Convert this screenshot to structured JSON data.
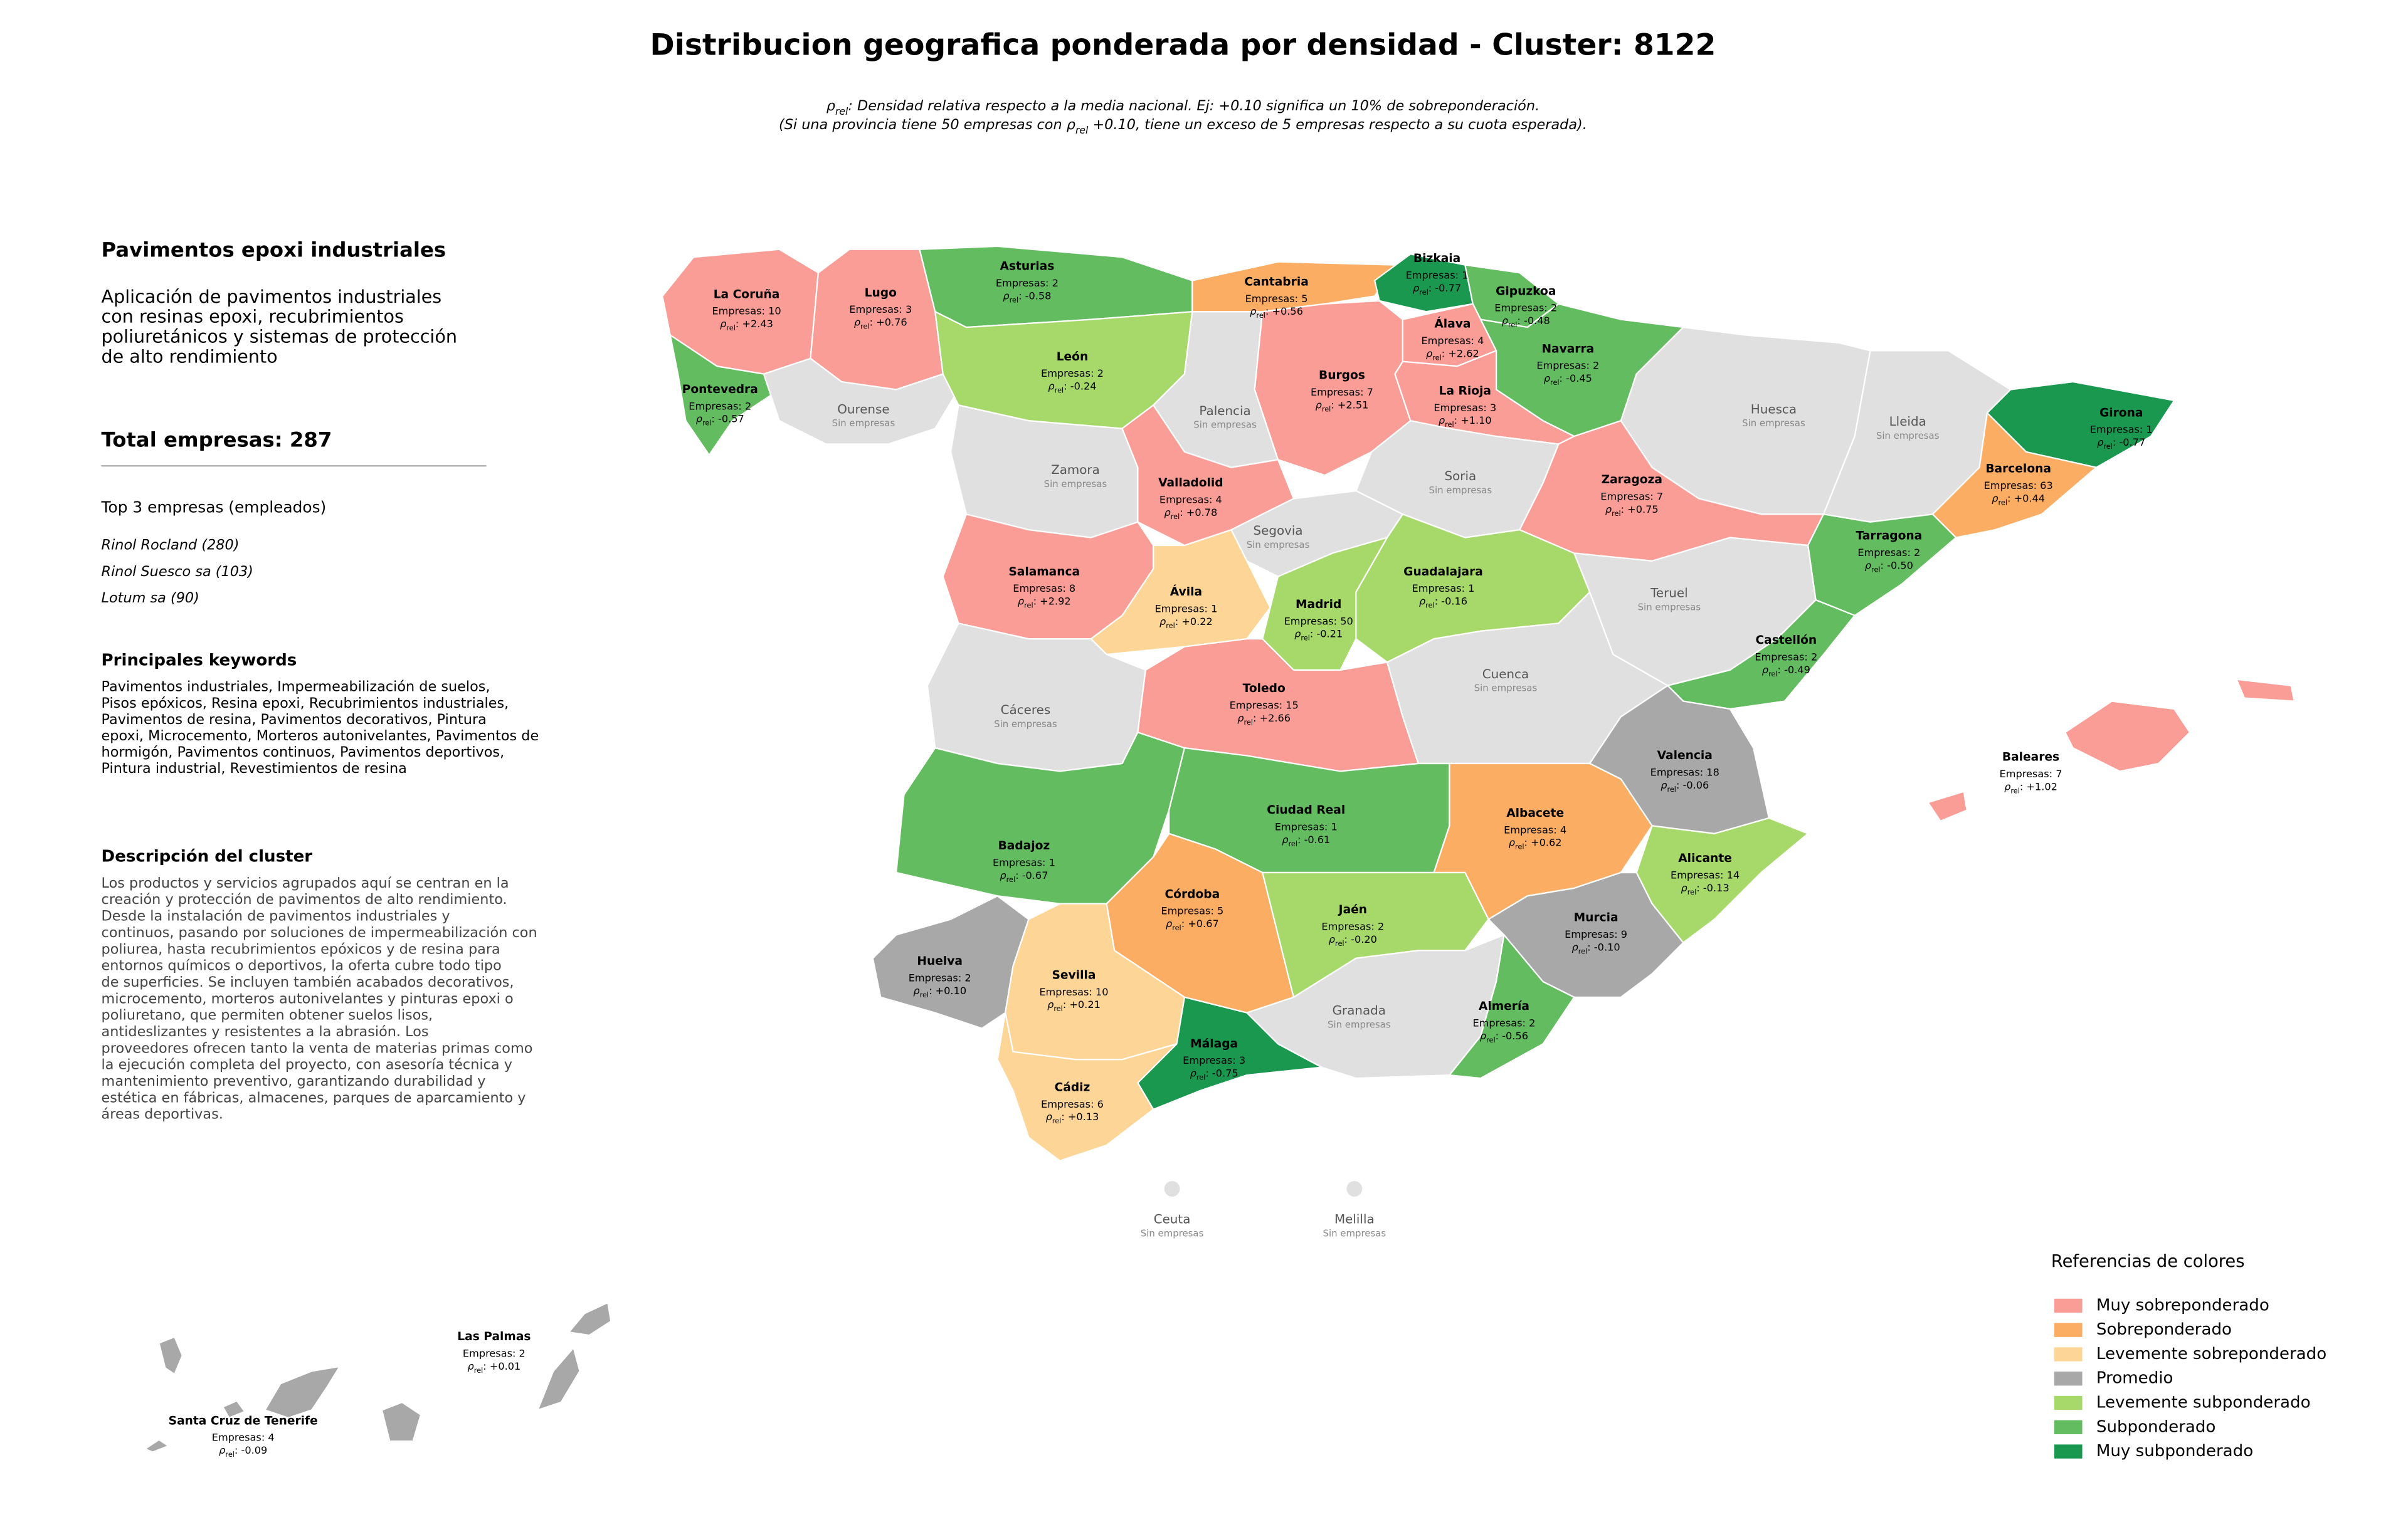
{
  "title": "Distribucion geografica ponderada por densidad - Cluster: 8122",
  "subtitle_lines": [
    [
      "ρ",
      "rel",
      ": Densidad relativa respecto a la media nacional. Ej: +0.10 significa un 10% de sobreponderación."
    ],
    [
      "(Si una provincia tiene 50 empresas con ρ",
      "rel",
      " +0.10, tiene un exceso de 5 empresas respecto a su cuota esperada)."
    ]
  ],
  "panel": {
    "heading": "Pavimentos epoxi industriales",
    "intro_lines": [
      "Aplicación de pavimentos industriales",
      "con resinas epoxi, recubrimientos",
      "poliuretánicos y sistemas de protección",
      "de alto rendimiento"
    ],
    "total": "Total empresas: 287",
    "top_heading": "Top 3 empresas (empleados)",
    "top_items": [
      "Rinol Rocland (280)",
      "Rinol Suesco sa (103)",
      "Lotum sa (90)"
    ],
    "keywords_heading": "Principales keywords",
    "keywords_lines": [
      "Pavimentos industriales, Impermeabilización de suelos,",
      "Pisos epóxicos, Resina epoxi, Recubrimientos industriales,",
      "Pavimentos de resina, Pavimentos decorativos, Pintura",
      "epoxi, Microcemento, Morteros autonivelantes, Pavimentos de",
      "hormigón, Pavimentos continuos, Pavimentos deportivos,",
      "Pintura industrial, Revestimientos de resina"
    ],
    "description_heading": "Descripción del cluster",
    "description_lines": [
      "Los productos y servicios agrupados aquí se centran en la",
      "creación y protección de pavimentos de alto rendimiento.",
      "Desde la instalación de pavimentos industriales y",
      "continuos, pasando por soluciones de impermeabilización con",
      "poliurea, hasta recubrimientos epóxicos y de resina para",
      "entornos químicos o deportivos, la oferta cubre todo tipo",
      "de superficies. Se incluyen también acabados decorativos,",
      "microcemento, morteros autonivelantes y pinturas epoxi o",
      "poliuretano, que permiten obtener suelos lisos,",
      "antideslizantes y resistentes a la abrasión. Los",
      "proveedores ofrecen tanto la venta de materias primas como",
      "la ejecución completa del proyecto, con asesoría técnica y",
      "mantenimiento preventivo, garantizando durabilidad y",
      "estética en fábricas, almacenes, parques de aparcamiento y",
      "áreas deportivas."
    ]
  },
  "map": {
    "rho_symbol": "ρ",
    "rho_subscript": "rel",
    "rho_separator": ": ",
    "no_data_color": "#e0e0e0",
    "provinces": [
      {
        "name": "La Coruña",
        "empresas": "Empresas: 10",
        "rho": "+2.43",
        "category": 0
      },
      {
        "name": "Lugo",
        "empresas": "Empresas: 3",
        "rho": "+0.76",
        "category": 0
      },
      {
        "name": "Asturias",
        "empresas": "Empresas: 2",
        "rho": "-0.58",
        "category": 5
      },
      {
        "name": "Cantabria",
        "empresas": "Empresas: 5",
        "rho": "+0.56",
        "category": 1
      },
      {
        "name": "Bizkaia",
        "empresas": "Empresas: 1",
        "rho": "-0.77",
        "category": 6
      },
      {
        "name": "Gipuzkoa",
        "empresas": "Empresas: 2",
        "rho": "-0.48",
        "category": 5
      },
      {
        "name": "Pontevedra",
        "empresas": "Empresas: 2",
        "rho": "-0.57",
        "category": 5
      },
      {
        "name": "Ourense",
        "empresas": "Sin empresas"
      },
      {
        "name": "León",
        "empresas": "Empresas: 2",
        "rho": "-0.24",
        "category": 4
      },
      {
        "name": "Palencia",
        "empresas": "Sin empresas"
      },
      {
        "name": "Burgos",
        "empresas": "Empresas: 7",
        "rho": "+2.51",
        "category": 0
      },
      {
        "name": "Álava",
        "empresas": "Empresas: 4",
        "rho": "+2.62",
        "category": 0
      },
      {
        "name": "Navarra",
        "empresas": "Empresas: 2",
        "rho": "-0.45",
        "category": 5
      },
      {
        "name": "La Rioja",
        "empresas": "Empresas: 3",
        "rho": "+1.10",
        "category": 0
      },
      {
        "name": "Huesca",
        "empresas": "Sin empresas"
      },
      {
        "name": "Lleida",
        "empresas": "Sin empresas"
      },
      {
        "name": "Girona",
        "empresas": "Empresas: 1",
        "rho": "-0.77",
        "category": 6
      },
      {
        "name": "Barcelona",
        "empresas": "Empresas: 63",
        "rho": "+0.44",
        "category": 1
      },
      {
        "name": "Zamora",
        "empresas": "Sin empresas"
      },
      {
        "name": "Valladolid",
        "empresas": "Empresas: 4",
        "rho": "+0.78",
        "category": 0
      },
      {
        "name": "Soria",
        "empresas": "Sin empresas"
      },
      {
        "name": "Zaragoza",
        "empresas": "Empresas: 7",
        "rho": "+0.75",
        "category": 0
      },
      {
        "name": "Tarragona",
        "empresas": "Empresas: 2",
        "rho": "-0.50",
        "category": 5
      },
      {
        "name": "Salamanca",
        "empresas": "Empresas: 8",
        "rho": "+2.92",
        "category": 0
      },
      {
        "name": "Segovia",
        "empresas": "Sin empresas"
      },
      {
        "name": "Ávila",
        "empresas": "Empresas: 1",
        "rho": "+0.22",
        "category": 2
      },
      {
        "name": "Guadalajara",
        "empresas": "Empresas: 1",
        "rho": "-0.16",
        "category": 4
      },
      {
        "name": "Teruel",
        "empresas": "Sin empresas"
      },
      {
        "name": "Madrid",
        "empresas": "Empresas: 50",
        "rho": "-0.21",
        "category": 4
      },
      {
        "name": "Castellón",
        "empresas": "Empresas: 2",
        "rho": "-0.49",
        "category": 5
      },
      {
        "name": "Cáceres",
        "empresas": "Sin empresas"
      },
      {
        "name": "Toledo",
        "empresas": "Empresas: 15",
        "rho": "+2.66",
        "category": 0
      },
      {
        "name": "Cuenca",
        "empresas": "Sin empresas"
      },
      {
        "name": "Valencia",
        "empresas": "Empresas: 18",
        "rho": "-0.06",
        "category": 3
      },
      {
        "name": "Baleares",
        "empresas": "Empresas: 7",
        "rho": "+1.02",
        "category": 0
      },
      {
        "name": "Badajoz",
        "empresas": "Empresas: 1",
        "rho": "-0.67",
        "category": 5
      },
      {
        "name": "Ciudad Real",
        "empresas": "Empresas: 1",
        "rho": "-0.61",
        "category": 5
      },
      {
        "name": "Albacete",
        "empresas": "Empresas: 4",
        "rho": "+0.62",
        "category": 1
      },
      {
        "name": "Alicante",
        "empresas": "Empresas: 14",
        "rho": "-0.13",
        "category": 4
      },
      {
        "name": "Córdoba",
        "empresas": "Empresas: 5",
        "rho": "+0.67",
        "category": 1
      },
      {
        "name": "Jaén",
        "empresas": "Empresas: 2",
        "rho": "-0.20",
        "category": 4
      },
      {
        "name": "Murcia",
        "empresas": "Empresas: 9",
        "rho": "-0.10",
        "category": 3
      },
      {
        "name": "Huelva",
        "empresas": "Empresas: 2",
        "rho": "+0.10",
        "category": 3
      },
      {
        "name": "Sevilla",
        "empresas": "Empresas: 10",
        "rho": "+0.21",
        "category": 2
      },
      {
        "name": "Granada",
        "empresas": "Sin empresas"
      },
      {
        "name": "Almería",
        "empresas": "Empresas: 2",
        "rho": "-0.56",
        "category": 5
      },
      {
        "name": "Málaga",
        "empresas": "Empresas: 3",
        "rho": "-0.75",
        "category": 6
      },
      {
        "name": "Cádiz",
        "empresas": "Empresas: 6",
        "rho": "+0.13",
        "category": 2
      },
      {
        "name": "Ceuta",
        "empresas": "Sin empresas"
      },
      {
        "name": "Melilla",
        "empresas": "Sin empresas"
      },
      {
        "name": "Las Palmas",
        "empresas": "Empresas: 2",
        "rho": "+0.01",
        "category": 3
      },
      {
        "name": "Santa Cruz de Tenerife",
        "empresas": "Empresas: 4",
        "rho": "-0.09",
        "category": 3
      }
    ]
  },
  "legend": {
    "title": "Referencias de colores",
    "items": [
      {
        "name": "Muy sobreponderado",
        "color": "#f99d96"
      },
      {
        "name": "Sobreponderado",
        "color": "#fbad64"
      },
      {
        "name": "Levemente sobreponderado",
        "color": "#fdd597"
      },
      {
        "name": "Promedio",
        "color": "#a8a8a8"
      },
      {
        "name": "Levemente subponderado",
        "color": "#a6d96a"
      },
      {
        "name": "Subponderado",
        "color": "#64bc61"
      },
      {
        "name": "Muy subponderado",
        "color": "#1a9850"
      }
    ]
  }
}
